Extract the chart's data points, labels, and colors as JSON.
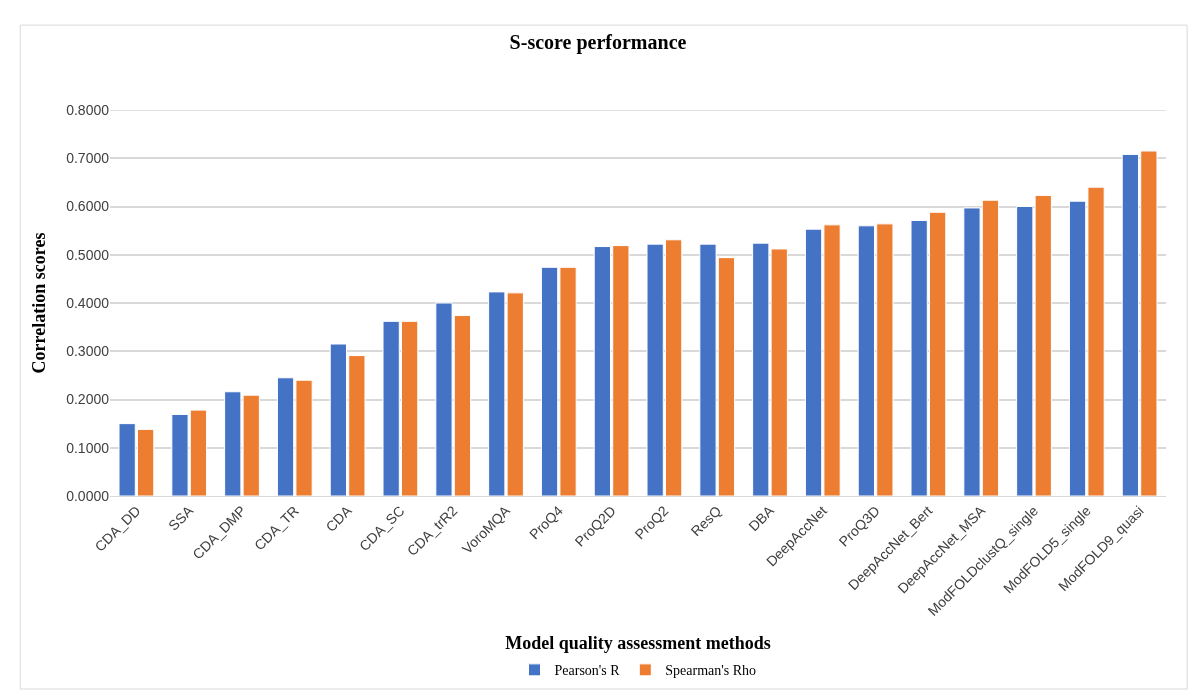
{
  "chart_data": {
    "type": "bar",
    "title": "S-score performance",
    "xlabel": "Model quality assessment methods",
    "ylabel": "Correlation scores",
    "categories": [
      "CDA_DD",
      "SSA",
      "CDA_DMP",
      "CDA_TR",
      "CDA",
      "CDA_SC",
      "CDA_trR2",
      "VoroMQA",
      "ProQ4",
      "ProQ2D",
      "ProQ2",
      "ResQ",
      "DBA",
      "DeepAccNet",
      "ProQ3D",
      "DeepAccNet_Bert",
      "DeepAccNet_MSA",
      "ModFOLDclustQ_single",
      "ModFOLD5_single",
      "ModFOLD9_quasi"
    ],
    "series": [
      {
        "name": "Pearson's R",
        "color": "#4472c4",
        "values": [
          0.15,
          0.169,
          0.216,
          0.245,
          0.315,
          0.362,
          0.4,
          0.423,
          0.474,
          0.517,
          0.522,
          0.522,
          0.524,
          0.553,
          0.56,
          0.571,
          0.597,
          0.6,
          0.611,
          0.708
        ]
      },
      {
        "name": "Spearman's Rho",
        "color": "#ed7d31",
        "values": [
          0.138,
          0.178,
          0.209,
          0.24,
          0.291,
          0.362,
          0.374,
          0.421,
          0.474,
          0.519,
          0.531,
          0.494,
          0.512,
          0.562,
          0.564,
          0.588,
          0.613,
          0.623,
          0.64,
          0.715
        ]
      }
    ],
    "ylim": [
      0,
      0.8
    ],
    "yticks": [
      {
        "value": 0,
        "label": "0.0000"
      },
      {
        "value": 0.1,
        "label": "0.1000"
      },
      {
        "value": 0.2,
        "label": "0.2000"
      },
      {
        "value": 0.3,
        "label": "0.3000"
      },
      {
        "value": 0.4,
        "label": "0.4000"
      },
      {
        "value": 0.5,
        "label": "0.5000"
      },
      {
        "value": 0.6,
        "label": "0.6000"
      },
      {
        "value": 0.7,
        "label": "0.7000"
      },
      {
        "value": 0.8,
        "label": "0.8000"
      }
    ],
    "grid": "y",
    "legend": "bottom"
  }
}
